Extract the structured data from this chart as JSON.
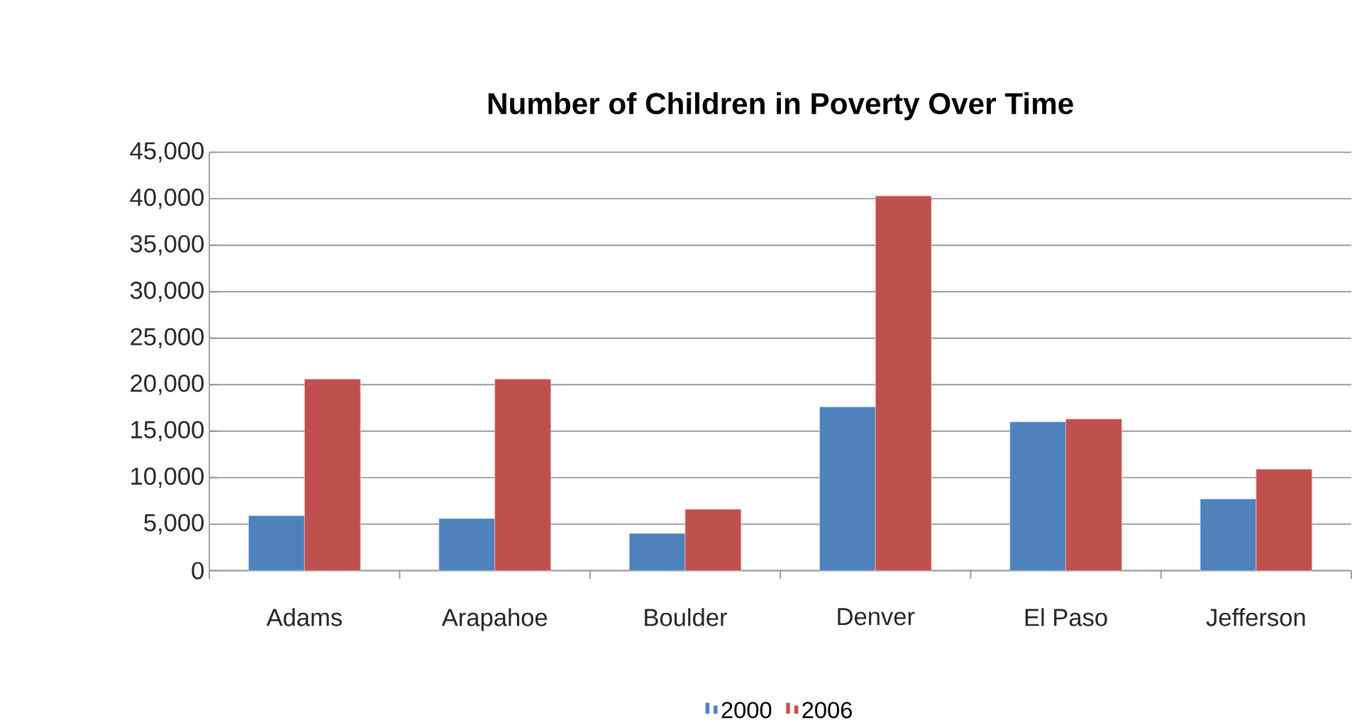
{
  "chart_data": {
    "type": "bar",
    "title": "Number of Children in Poverty Over Time",
    "categories": [
      "Adams",
      "Arapahoe",
      "Boulder",
      "Denver",
      "El Paso",
      "Jefferson"
    ],
    "series": [
      {
        "name": "2000",
        "color": "#4f81bd",
        "values": [
          5900,
          5600,
          4000,
          17600,
          16000,
          7700
        ]
      },
      {
        "name": "2006",
        "color": "#c0504d",
        "values": [
          20600,
          20600,
          6600,
          40300,
          16300,
          10900
        ]
      }
    ],
    "ylim": [
      0,
      45000
    ],
    "yticks": [
      {
        "value": 0,
        "label": "0"
      },
      {
        "value": 5000,
        "label": "5,000"
      },
      {
        "value": 10000,
        "label": "10,000"
      },
      {
        "value": 15000,
        "label": "15,000"
      },
      {
        "value": 20000,
        "label": "20,000"
      },
      {
        "value": 25000,
        "label": "25,000"
      },
      {
        "value": 30000,
        "label": "30,000"
      },
      {
        "value": 35000,
        "label": "35,000"
      },
      {
        "value": 40000,
        "label": "40,000"
      },
      {
        "value": 45000,
        "label": "45,000"
      }
    ],
    "grid": "y",
    "legend": "bottom"
  }
}
